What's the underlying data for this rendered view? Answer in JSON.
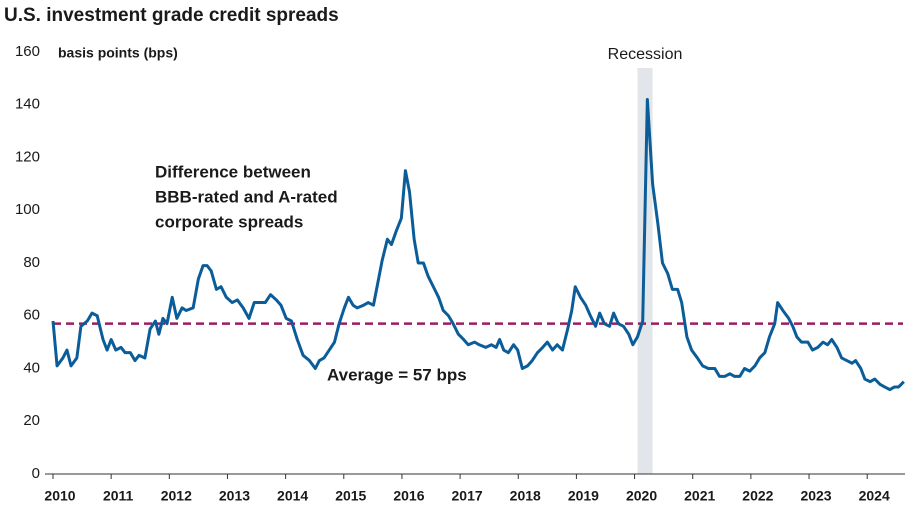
{
  "chart_data": {
    "type": "line",
    "title": "U.S. investment grade credit spreads",
    "y_label": "basis points (bps)",
    "annotation": [
      "Difference between",
      "BBB-rated and A-rated",
      "corporate spreads"
    ],
    "recession": {
      "label": "Recession",
      "start": 2020.05,
      "end": 2020.31
    },
    "average": {
      "label": "Average = 57 bps",
      "value": 57,
      "color": "#9b1d63"
    },
    "xlim": [
      2010,
      2024.65
    ],
    "xticks": [
      2010,
      2011,
      2012,
      2013,
      2014,
      2015,
      2016,
      2017,
      2018,
      2019,
      2020,
      2021,
      2022,
      2023,
      2024
    ],
    "ylim": [
      0,
      160
    ],
    "yticks": [
      0,
      20,
      40,
      60,
      80,
      100,
      120,
      140,
      160
    ],
    "series": [
      {
        "color": "#0b5d99",
        "x": [
          2010.0,
          2010.07,
          2010.17,
          2010.24,
          2010.31,
          2010.41,
          2010.48,
          2010.59,
          2010.67,
          2010.76,
          2010.86,
          2010.93,
          2011.0,
          2011.08,
          2011.17,
          2011.24,
          2011.33,
          2011.41,
          2011.48,
          2011.58,
          2011.67,
          2011.76,
          2011.82,
          2011.89,
          2011.96,
          2012.05,
          2012.13,
          2012.22,
          2012.29,
          2012.41,
          2012.5,
          2012.58,
          2012.65,
          2012.72,
          2012.81,
          2012.89,
          2012.98,
          2013.08,
          2013.17,
          2013.27,
          2013.37,
          2013.46,
          2013.55,
          2013.65,
          2013.74,
          2013.84,
          2013.92,
          2014.01,
          2014.1,
          2014.2,
          2014.3,
          2014.41,
          2014.51,
          2014.58,
          2014.66,
          2014.75,
          2014.84,
          2014.92,
          2015.01,
          2015.08,
          2015.16,
          2015.23,
          2015.34,
          2015.42,
          2015.51,
          2015.59,
          2015.66,
          2015.75,
          2015.82,
          2015.9,
          2015.99,
          2016.06,
          2016.13,
          2016.21,
          2016.28,
          2016.37,
          2016.45,
          2016.54,
          2016.63,
          2016.71,
          2016.8,
          2016.88,
          2016.97,
          2017.06,
          2017.14,
          2017.25,
          2017.33,
          2017.44,
          2017.54,
          2017.62,
          2017.68,
          2017.75,
          2017.83,
          2017.92,
          2017.99,
          2018.07,
          2018.16,
          2018.24,
          2018.33,
          2018.42,
          2018.5,
          2018.59,
          2018.67,
          2018.76,
          2018.85,
          2018.92,
          2018.98,
          2019.07,
          2019.16,
          2019.24,
          2019.33,
          2019.4,
          2019.48,
          2019.57,
          2019.64,
          2019.72,
          2019.81,
          2019.9,
          2019.97,
          2020.05,
          2020.14,
          2020.22,
          2020.31,
          2020.4,
          2020.48,
          2020.57,
          2020.65,
          2020.74,
          2020.81,
          2020.9,
          2020.98,
          2021.08,
          2021.17,
          2021.27,
          2021.38,
          2021.46,
          2021.55,
          2021.64,
          2021.72,
          2021.81,
          2021.89,
          2021.98,
          2022.07,
          2022.15,
          2022.24,
          2022.32,
          2022.41,
          2022.46,
          2022.55,
          2022.65,
          2022.72,
          2022.79,
          2022.87,
          2022.98,
          2023.06,
          2023.15,
          2023.24,
          2023.32,
          2023.39,
          2023.48,
          2023.56,
          2023.65,
          2023.74,
          2023.8,
          2023.89,
          2023.96,
          2024.05,
          2024.13,
          2024.22,
          2024.3,
          2024.39,
          2024.47,
          2024.54,
          2024.63
        ],
        "values": [
          58,
          41,
          44,
          47,
          41,
          44,
          56,
          58,
          61,
          60,
          51,
          47,
          51,
          47,
          48,
          46,
          46,
          43,
          45,
          44,
          55,
          58,
          53,
          59,
          57,
          67,
          59,
          63,
          62,
          63,
          74,
          79,
          79,
          77,
          70,
          71,
          67,
          65,
          66,
          63,
          59,
          65,
          65,
          65,
          68,
          66,
          64,
          59,
          58,
          51,
          45,
          43,
          40,
          43,
          44,
          47,
          50,
          57,
          63,
          67,
          64,
          63,
          64,
          65,
          64,
          73,
          81,
          89,
          87,
          92,
          97,
          115,
          107,
          89,
          80,
          80,
          75,
          71,
          67,
          62,
          60,
          57,
          53,
          51,
          49,
          50,
          49,
          48,
          49,
          48,
          51,
          47,
          46,
          49,
          47,
          40,
          41,
          43,
          46,
          48,
          50,
          47,
          49,
          47,
          55,
          62,
          71,
          67,
          64,
          60,
          56,
          61,
          57,
          56,
          61,
          57,
          56,
          53,
          49,
          52,
          58,
          142,
          110,
          95,
          80,
          76,
          70,
          70,
          65,
          52,
          47,
          44,
          41,
          40,
          40,
          37,
          37,
          38,
          37,
          37,
          40,
          39,
          41,
          44,
          46,
          52,
          57,
          65,
          62,
          59,
          56,
          52,
          50,
          50,
          47,
          48,
          50,
          49,
          51,
          48,
          44,
          43,
          42,
          43,
          40,
          36,
          35,
          36,
          34,
          33,
          32,
          33,
          33,
          35
        ]
      }
    ]
  }
}
